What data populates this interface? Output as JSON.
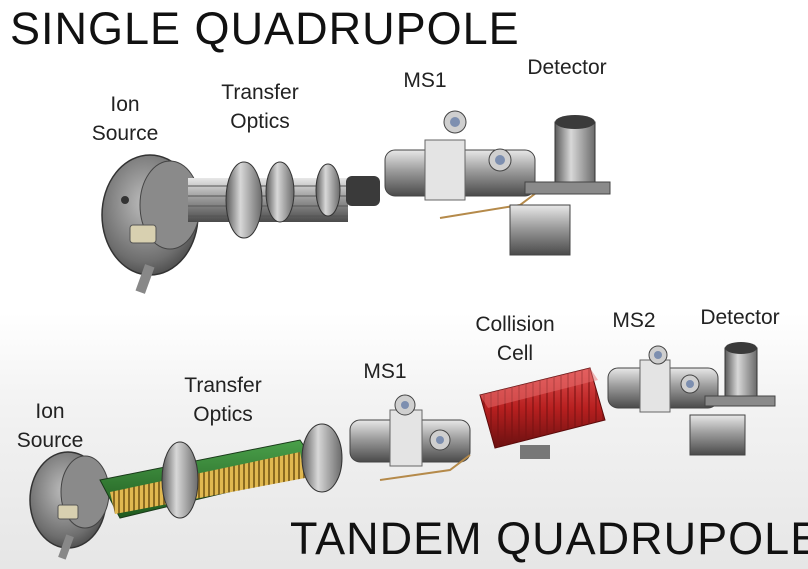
{
  "top_section": {
    "title": "SINGLE QUADRUPOLE",
    "labels": {
      "ion_source_line1": "Ion",
      "ion_source_line2": "Source",
      "transfer_optics_line1": "Transfer",
      "transfer_optics_line2": "Optics",
      "ms1": "MS1",
      "detector": "Detector"
    }
  },
  "bottom_section": {
    "title": "TANDEM QUADRUPOLE",
    "labels": {
      "ion_source_line1": "Ion",
      "ion_source_line2": "Source",
      "transfer_optics_line1": "Transfer",
      "transfer_optics_line2": "Optics",
      "ms1": "MS1",
      "collision_cell_line1": "Collision",
      "collision_cell_line2": "Cell",
      "ms2": "MS2",
      "detector": "Detector"
    }
  },
  "colors": {
    "text": "#222222",
    "metal": "#9a9a9a",
    "collision_cell": "#c0282a",
    "optics_green": "#2f7a2f",
    "optics_gold": "#c8a040"
  }
}
